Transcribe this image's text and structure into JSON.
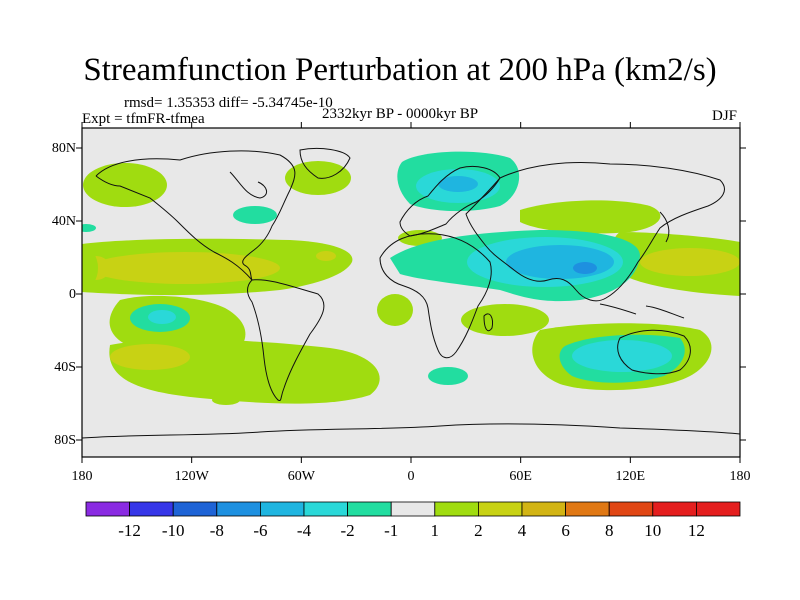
{
  "title": "Streamfunction Perturbation at 200 hPa (km2/s)",
  "stats": "rmsd= 1.35353 diff= -5.34745e-10",
  "experiment": "Expt = tfmFR-tfmea",
  "period": "2332kyr BP - 0000kyr BP",
  "season": "DJF",
  "lat_ticks": [
    "80N",
    "40N",
    "0",
    "40S",
    "80S"
  ],
  "lon_ticks": [
    "180",
    "120W",
    "60W",
    "0",
    "60E",
    "120E",
    "180"
  ],
  "colorbar": {
    "labels": [
      "-12",
      "-10",
      "-8",
      "-6",
      "-4",
      "-2",
      "-1",
      "1",
      "2",
      "4",
      "6",
      "8",
      "10",
      "12"
    ],
    "colors": [
      "#8a2be2",
      "#3636e8",
      "#1e63d6",
      "#1e90e0",
      "#1fb5e0",
      "#2ad8d8",
      "#22dda0",
      "#e8e8e8",
      "#a0dc10",
      "#c8d214",
      "#d2b414",
      "#e07814",
      "#e04614",
      "#e41e1e",
      "#e41e1e"
    ]
  },
  "colors": {
    "neutral": "#e8e8e8",
    "coast": "#111111"
  }
}
